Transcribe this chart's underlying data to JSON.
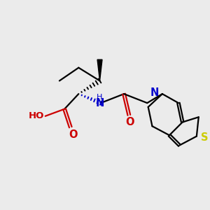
{
  "bg_color": "#ebebeb",
  "bond_color": "#000000",
  "N_color": "#0000cc",
  "O_color": "#cc0000",
  "S_color": "#cccc00",
  "line_width": 1.6,
  "fig_size": [
    3.0,
    3.0
  ],
  "dpi": 100,
  "xlim": [
    0,
    10
  ],
  "ylim": [
    0,
    10
  ],
  "font_size": 9.5
}
